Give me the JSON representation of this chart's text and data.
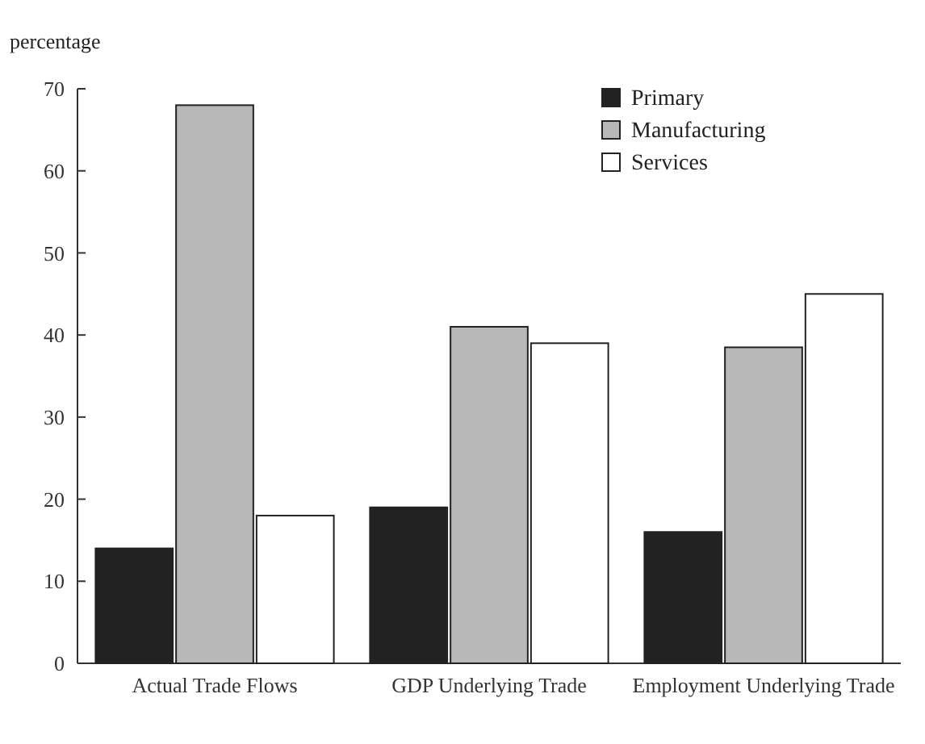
{
  "chart_data": {
    "type": "bar",
    "ylabel": "percentage",
    "categories": [
      "Actual Trade Flows",
      "GDP Underlying Trade",
      "Employment Underlying Trade"
    ],
    "series": [
      {
        "name": "Primary",
        "color": "#222222",
        "values": [
          14,
          19,
          16
        ]
      },
      {
        "name": "Manufacturing",
        "color": "#b8b8b8",
        "values": [
          68,
          41,
          38.5
        ]
      },
      {
        "name": "Services",
        "color": "#ffffff",
        "values": [
          18,
          39,
          45
        ]
      }
    ],
    "ylim": [
      0,
      70
    ],
    "yticks": [
      0,
      10,
      20,
      30,
      40,
      50,
      60,
      70
    ],
    "legend": "top right"
  }
}
